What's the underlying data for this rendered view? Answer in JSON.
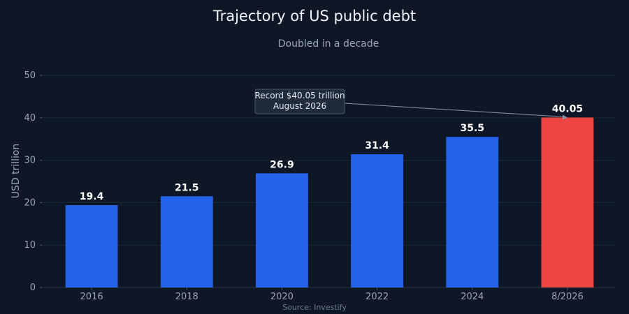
{
  "chart_data": {
    "type": "bar",
    "title": "Trajectory of US public debt",
    "subtitle": "Doubled in a decade",
    "xlabel": "",
    "ylabel": "USD trillion",
    "ylim": [
      0,
      50
    ],
    "yticks": [
      0,
      10,
      20,
      30,
      40,
      50
    ],
    "grid": true,
    "categories": [
      "2016",
      "2018",
      "2020",
      "2022",
      "2024",
      "8/2026"
    ],
    "values": [
      19.4,
      21.5,
      26.9,
      31.4,
      35.5,
      40.05
    ],
    "value_labels": [
      "19.4",
      "21.5",
      "26.9",
      "31.4",
      "35.5",
      "40.05"
    ],
    "colors": [
      "#2563eb",
      "#2563eb",
      "#2563eb",
      "#2563eb",
      "#2563eb",
      "#ef4444"
    ],
    "annotation": {
      "lines": [
        "Record $40.05 trillion",
        "August 2026"
      ],
      "target_category": "8/2026",
      "target_value": 40.05
    },
    "source": "Source: Investify"
  }
}
